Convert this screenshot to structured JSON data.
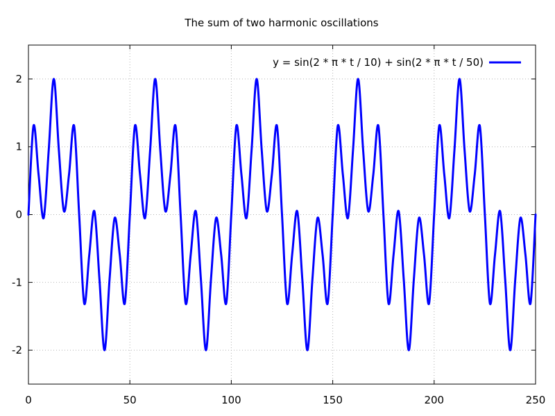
{
  "chart_data": {
    "type": "line",
    "title": "The sum of two harmonic oscillations",
    "xlabel": "",
    "ylabel": "",
    "xlim": [
      0,
      250
    ],
    "ylim": [
      -2.5,
      2.5
    ],
    "xticks": [
      0,
      50,
      100,
      150,
      200,
      250
    ],
    "xtick_labels": [
      "0",
      "50",
      "100",
      "150",
      "200",
      "250"
    ],
    "yticks": [
      -2,
      -1,
      0,
      1,
      2
    ],
    "ytick_labels": [
      "-2",
      "-1",
      "0",
      "1",
      "2"
    ],
    "grid": true,
    "legend_position": "top-right",
    "series": [
      {
        "name": "y = sin(2 * π * t / 10) + sin(2 * π * t / 50)",
        "color": "#0000ff",
        "x": [
          0,
          2.5,
          5,
          7.5,
          10,
          12.5,
          15,
          17.5,
          20,
          22.5,
          25,
          27.5,
          30,
          32.5,
          35,
          37.5,
          40,
          42.5,
          45,
          47.5,
          50,
          52.5,
          55,
          57.5,
          60,
          62.5,
          65,
          67.5,
          70,
          72.5,
          75,
          77.5,
          80,
          82.5,
          85,
          87.5,
          90,
          92.5,
          95,
          97.5,
          100,
          102.5,
          105,
          107.5,
          110,
          112.5,
          115,
          117.5,
          120,
          122.5,
          125,
          127.5,
          130,
          132.5,
          135,
          137.5,
          140,
          142.5,
          145,
          147.5,
          150,
          152.5,
          155,
          157.5,
          160,
          162.5,
          165,
          167.5,
          170,
          172.5,
          175,
          177.5,
          180,
          182.5,
          185,
          187.5,
          190,
          192.5,
          195,
          197.5,
          200,
          202.5,
          205,
          207.5,
          210,
          212.5,
          215,
          217.5,
          220,
          222.5,
          225,
          227.5,
          230,
          232.5,
          235,
          237.5,
          240,
          242.5,
          245,
          247.5,
          250
        ],
        "y": [
          0,
          1.31,
          0.59,
          -0.05,
          0.95,
          2.0,
          0.95,
          0.05,
          0.59,
          1.31,
          0,
          -1.31,
          -0.59,
          0.05,
          -0.95,
          -2.0,
          -0.95,
          -0.05,
          -0.59,
          -1.31,
          0,
          1.31,
          0.59,
          -0.05,
          0.95,
          2.0,
          0.95,
          0.05,
          0.59,
          1.31,
          0,
          -1.31,
          -0.59,
          0.05,
          -0.95,
          -2.0,
          -0.95,
          -0.05,
          -0.59,
          -1.31,
          0,
          1.31,
          0.59,
          -0.05,
          0.95,
          2.0,
          0.95,
          0.05,
          0.59,
          1.31,
          0,
          -1.31,
          -0.59,
          0.05,
          -0.95,
          -2.0,
          -0.95,
          -0.05,
          -0.59,
          -1.31,
          0,
          1.31,
          0.59,
          -0.05,
          0.95,
          2.0,
          0.95,
          0.05,
          0.59,
          1.31,
          0,
          -1.31,
          -0.59,
          0.05,
          -0.95,
          -2.0,
          -0.95,
          -0.05,
          -0.59,
          -1.31,
          0,
          1.31,
          0.59,
          -0.05,
          0.95,
          2.0,
          0.95,
          0.05,
          0.59,
          1.31,
          0,
          -1.31,
          -0.59,
          0.05,
          -0.95,
          -2.0,
          -0.95,
          -0.05,
          -0.59,
          -1.31,
          0
        ]
      }
    ]
  }
}
